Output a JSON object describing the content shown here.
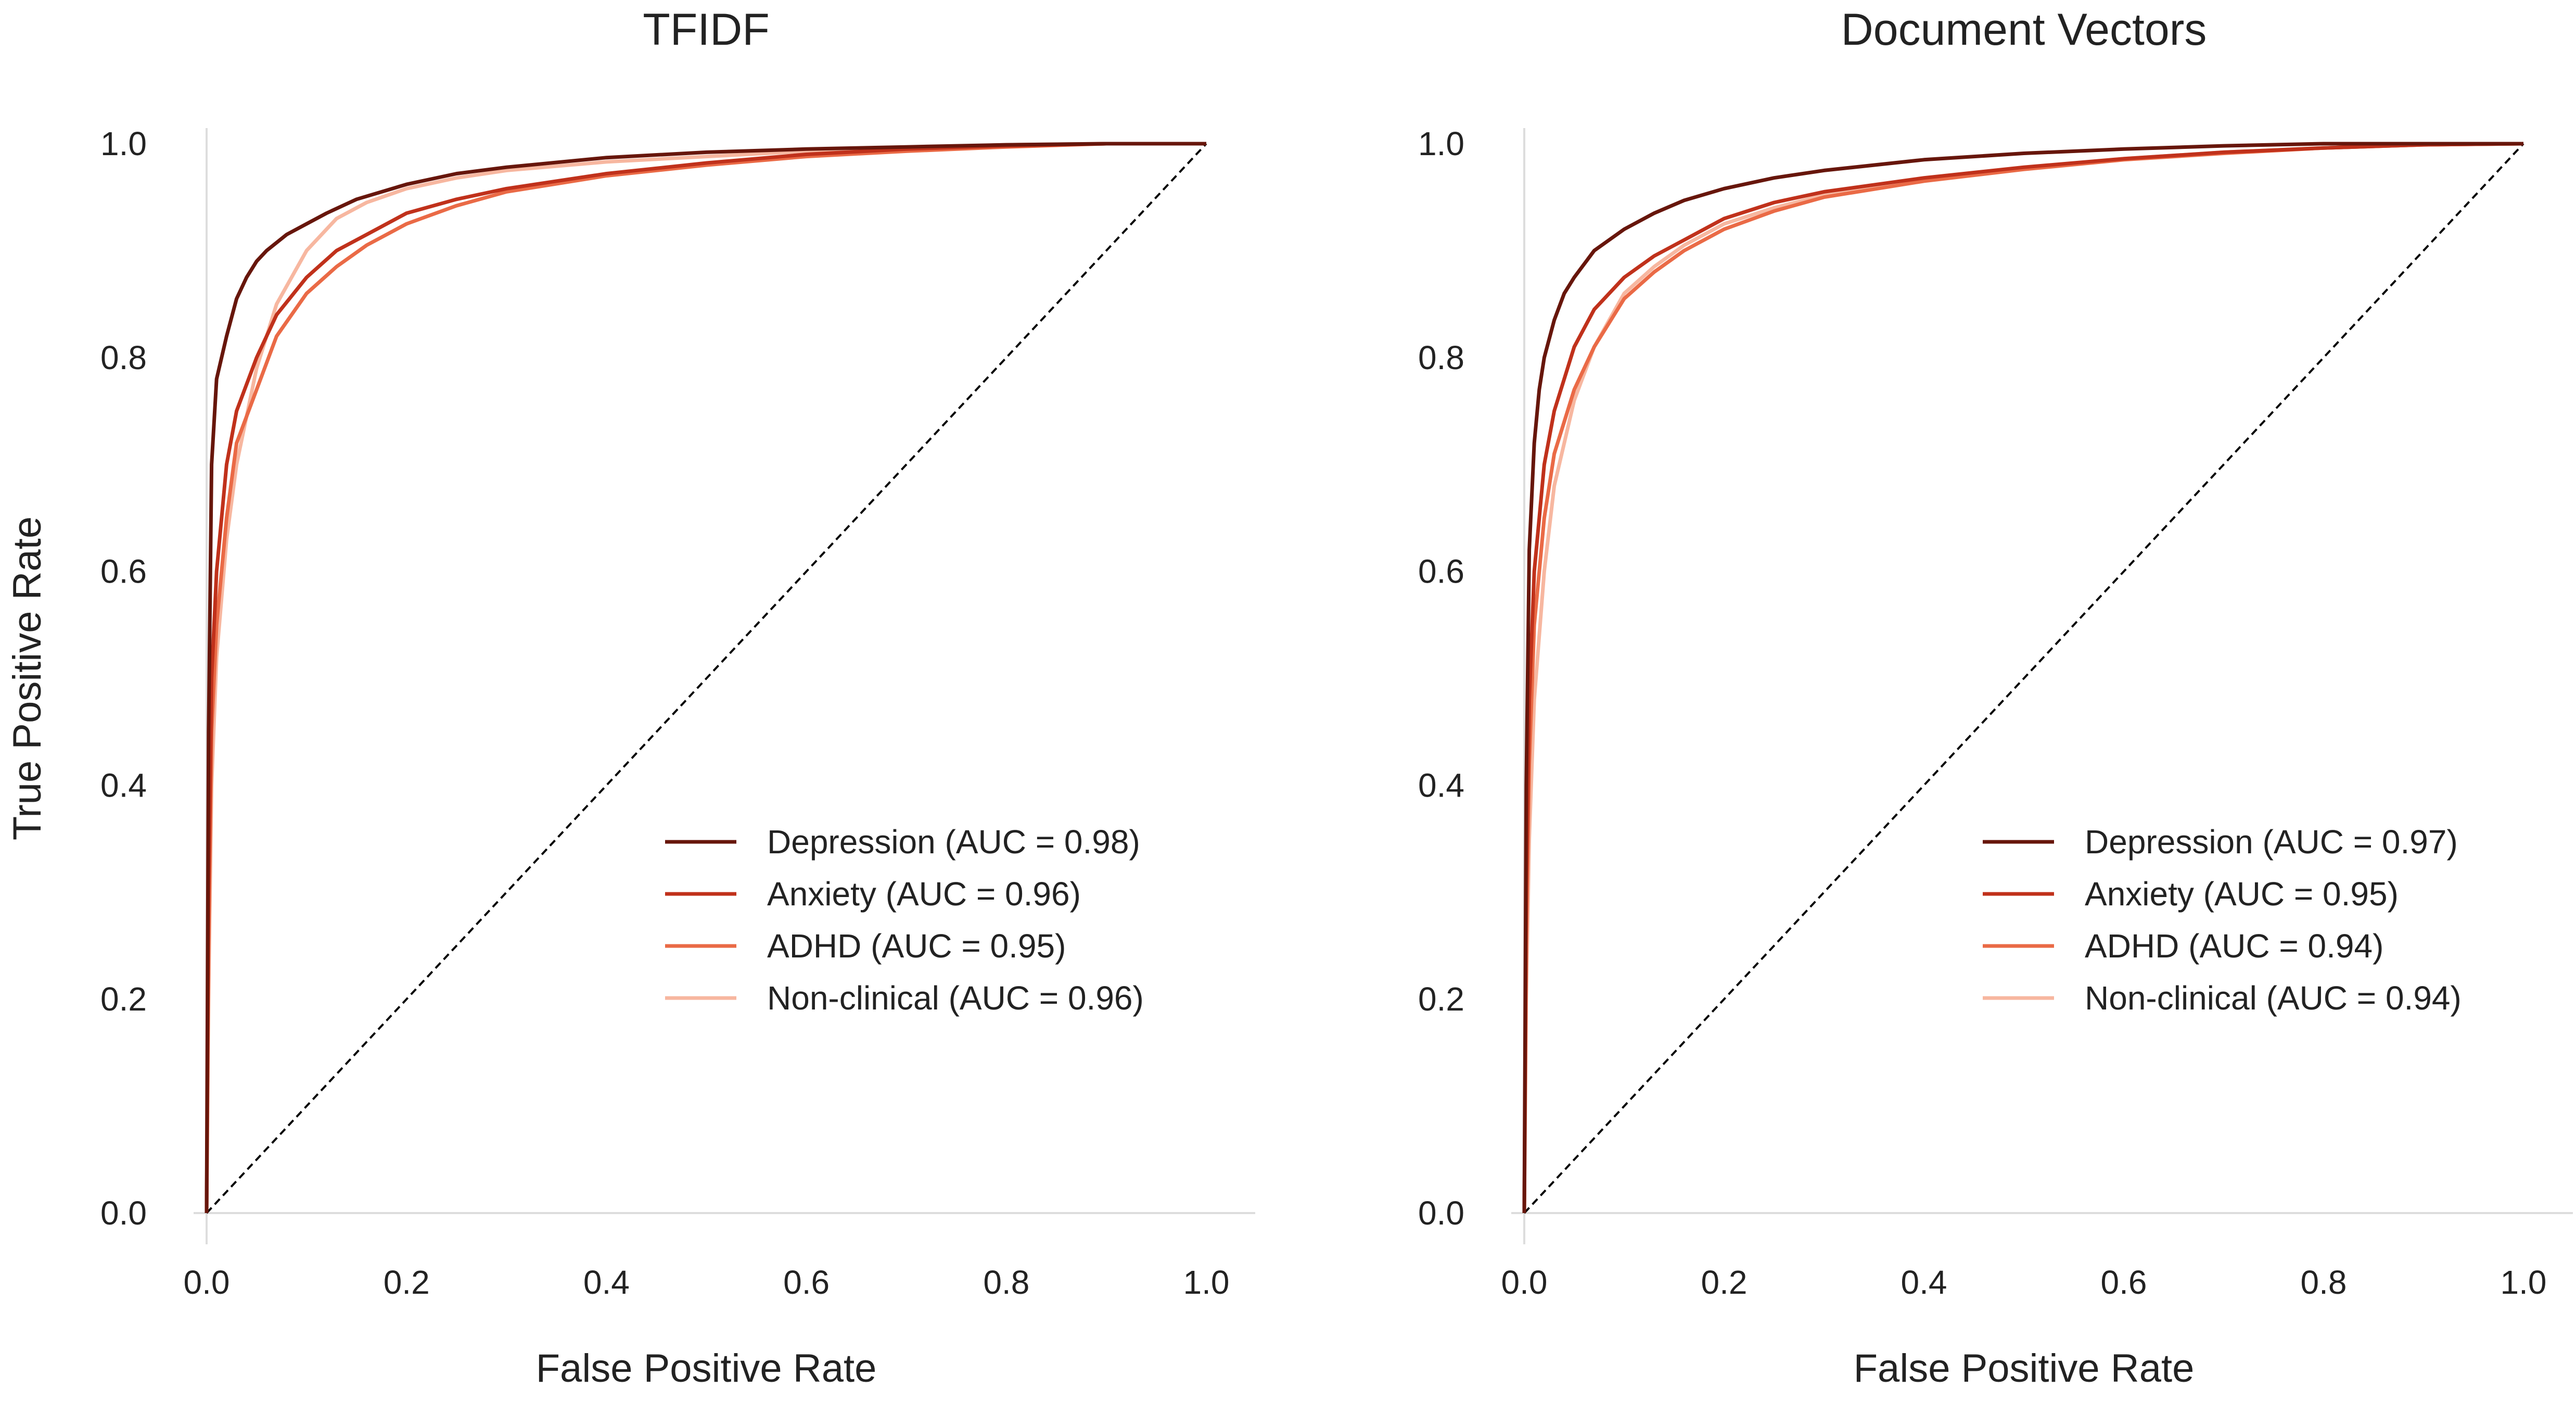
{
  "chart_data": [
    {
      "type": "line",
      "title": "TFIDF",
      "xlabel": "False Positive Rate",
      "ylabel": "True Positive Rate",
      "xlim": [
        0.0,
        1.0
      ],
      "ylim": [
        0.0,
        1.0
      ],
      "xticks": [
        "0.0",
        "0.2",
        "0.4",
        "0.6",
        "0.8",
        "1.0"
      ],
      "yticks": [
        "0.0",
        "0.2",
        "0.4",
        "0.6",
        "0.8",
        "1.0"
      ],
      "grid": false,
      "legend_position": "lower-right",
      "chance_line": {
        "x": [
          0,
          1
        ],
        "y": [
          0,
          1
        ],
        "style": "dashed",
        "color": "#000000"
      },
      "series": [
        {
          "name": "Depression (AUC = 0.98)",
          "color": "#67160b",
          "x": [
            0,
            0.002,
            0.005,
            0.01,
            0.015,
            0.02,
            0.03,
            0.04,
            0.05,
            0.06,
            0.08,
            0.1,
            0.12,
            0.15,
            0.2,
            0.25,
            0.3,
            0.4,
            0.5,
            0.6,
            0.7,
            0.8,
            0.9,
            1.0
          ],
          "y": [
            0,
            0.45,
            0.7,
            0.78,
            0.8,
            0.82,
            0.855,
            0.875,
            0.89,
            0.9,
            0.915,
            0.925,
            0.935,
            0.948,
            0.962,
            0.972,
            0.978,
            0.987,
            0.992,
            0.995,
            0.997,
            0.999,
            1.0,
            1.0
          ]
        },
        {
          "name": "Anxiety (AUC = 0.96)",
          "color": "#c0311b",
          "x": [
            0,
            0.002,
            0.005,
            0.01,
            0.02,
            0.03,
            0.05,
            0.07,
            0.1,
            0.13,
            0.16,
            0.2,
            0.25,
            0.3,
            0.4,
            0.5,
            0.6,
            0.7,
            0.8,
            0.9,
            1.0
          ],
          "y": [
            0,
            0.3,
            0.5,
            0.6,
            0.7,
            0.75,
            0.8,
            0.84,
            0.875,
            0.9,
            0.915,
            0.935,
            0.948,
            0.958,
            0.972,
            0.982,
            0.99,
            0.995,
            0.998,
            1.0,
            1.0
          ]
        },
        {
          "name": "ADHD (AUC = 0.95)",
          "color": "#ea6a46",
          "x": [
            0,
            0.002,
            0.005,
            0.01,
            0.02,
            0.03,
            0.05,
            0.07,
            0.1,
            0.13,
            0.16,
            0.2,
            0.25,
            0.3,
            0.4,
            0.5,
            0.6,
            0.7,
            0.8,
            0.9,
            1.0
          ],
          "y": [
            0,
            0.25,
            0.45,
            0.55,
            0.65,
            0.72,
            0.77,
            0.82,
            0.86,
            0.885,
            0.905,
            0.925,
            0.942,
            0.955,
            0.97,
            0.98,
            0.988,
            0.993,
            0.997,
            1.0,
            1.0
          ]
        },
        {
          "name": "Non-clinical (AUC = 0.96)",
          "color": "#f7b7a0",
          "x": [
            0,
            0.002,
            0.005,
            0.01,
            0.02,
            0.03,
            0.05,
            0.07,
            0.1,
            0.13,
            0.16,
            0.2,
            0.25,
            0.3,
            0.4,
            0.5,
            0.6,
            0.7,
            0.8,
            0.9,
            1.0
          ],
          "y": [
            0,
            0.2,
            0.4,
            0.52,
            0.63,
            0.7,
            0.79,
            0.85,
            0.9,
            0.93,
            0.945,
            0.958,
            0.968,
            0.975,
            0.983,
            0.988,
            0.993,
            0.996,
            0.999,
            1.0,
            1.0
          ]
        }
      ]
    },
    {
      "type": "line",
      "title": "Document Vectors",
      "xlabel": "False Positive Rate",
      "ylabel": "",
      "xlim": [
        0.0,
        1.0
      ],
      "ylim": [
        0.0,
        1.0
      ],
      "xticks": [
        "0.0",
        "0.2",
        "0.4",
        "0.6",
        "0.8",
        "1.0"
      ],
      "yticks": [
        "0.0",
        "0.2",
        "0.4",
        "0.6",
        "0.8",
        "1.0"
      ],
      "grid": false,
      "legend_position": "lower-right",
      "chance_line": {
        "x": [
          0,
          1
        ],
        "y": [
          0,
          1
        ],
        "style": "dashed",
        "color": "#000000"
      },
      "series": [
        {
          "name": "Depression (AUC = 0.97)",
          "color": "#67160b",
          "x": [
            0,
            0.002,
            0.005,
            0.01,
            0.015,
            0.02,
            0.03,
            0.04,
            0.05,
            0.07,
            0.1,
            0.13,
            0.16,
            0.2,
            0.25,
            0.3,
            0.4,
            0.5,
            0.6,
            0.7,
            0.8,
            0.9,
            1.0
          ],
          "y": [
            0,
            0.4,
            0.62,
            0.72,
            0.77,
            0.8,
            0.835,
            0.86,
            0.875,
            0.9,
            0.92,
            0.935,
            0.947,
            0.958,
            0.968,
            0.975,
            0.985,
            0.991,
            0.995,
            0.998,
            1.0,
            1.0,
            1.0
          ]
        },
        {
          "name": "Anxiety (AUC = 0.95)",
          "color": "#c0311b",
          "x": [
            0,
            0.002,
            0.005,
            0.01,
            0.02,
            0.03,
            0.05,
            0.07,
            0.1,
            0.13,
            0.16,
            0.2,
            0.25,
            0.3,
            0.4,
            0.5,
            0.6,
            0.7,
            0.8,
            0.9,
            1.0
          ],
          "y": [
            0,
            0.3,
            0.48,
            0.6,
            0.7,
            0.75,
            0.81,
            0.845,
            0.875,
            0.895,
            0.91,
            0.93,
            0.945,
            0.955,
            0.968,
            0.978,
            0.986,
            0.992,
            0.996,
            0.999,
            1.0
          ]
        },
        {
          "name": "ADHD (AUC = 0.94)",
          "color": "#ea6a46",
          "x": [
            0,
            0.002,
            0.005,
            0.01,
            0.02,
            0.03,
            0.05,
            0.07,
            0.1,
            0.13,
            0.16,
            0.2,
            0.25,
            0.3,
            0.4,
            0.5,
            0.6,
            0.7,
            0.8,
            0.9,
            1.0
          ],
          "y": [
            0,
            0.25,
            0.42,
            0.55,
            0.65,
            0.71,
            0.77,
            0.81,
            0.855,
            0.88,
            0.9,
            0.92,
            0.937,
            0.95,
            0.965,
            0.976,
            0.985,
            0.991,
            0.996,
            0.999,
            1.0
          ]
        },
        {
          "name": "Non-clinical (AUC = 0.94)",
          "color": "#f7b7a0",
          "x": [
            0,
            0.002,
            0.005,
            0.01,
            0.02,
            0.03,
            0.05,
            0.07,
            0.1,
            0.13,
            0.16,
            0.2,
            0.25,
            0.3,
            0.4,
            0.5,
            0.6,
            0.7,
            0.8,
            0.9,
            1.0
          ],
          "y": [
            0,
            0.2,
            0.35,
            0.48,
            0.6,
            0.68,
            0.76,
            0.81,
            0.86,
            0.885,
            0.905,
            0.925,
            0.94,
            0.952,
            0.967,
            0.977,
            0.986,
            0.992,
            0.996,
            0.999,
            1.0
          ]
        }
      ]
    }
  ]
}
